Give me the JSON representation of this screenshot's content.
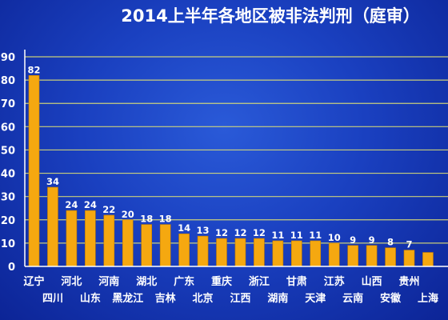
{
  "chart_data": {
    "type": "bar",
    "title": "2014上半年各地区被非法判刑（庭审）",
    "xlabel": "",
    "ylabel": "",
    "ylim": [
      0,
      90
    ],
    "yticks": [
      0,
      10,
      20,
      30,
      40,
      50,
      60,
      70,
      80,
      90
    ],
    "grid": true,
    "legend": "none",
    "categories": [
      "辽宁",
      "四川",
      "河北",
      "山东",
      "河南",
      "黑龙江",
      "湖北",
      "吉林",
      "广东",
      "北京",
      "重庆",
      "江西",
      "浙江",
      "湖南",
      "甘肃",
      "天津",
      "江苏",
      "云南",
      "山西",
      "安徽",
      "贵州",
      "上海"
    ],
    "values": [
      82,
      34,
      24,
      24,
      22,
      20,
      18,
      18,
      14,
      13,
      12,
      12,
      12,
      11,
      11,
      11,
      10,
      9,
      9,
      8,
      7,
      6
    ],
    "data_labels": [
      "82",
      "34",
      "24",
      "24",
      "22",
      "20",
      "18",
      "18",
      "14",
      "13",
      "12",
      "12",
      "12",
      "11",
      "11",
      "11",
      "10",
      "9",
      "9",
      "8",
      "7",
      ""
    ],
    "colors": {
      "bar": "#f5a810",
      "bar_edge": "#c07c00",
      "grid": "#e8e870",
      "axis": "#ffffff",
      "text": "#ffffff"
    }
  }
}
